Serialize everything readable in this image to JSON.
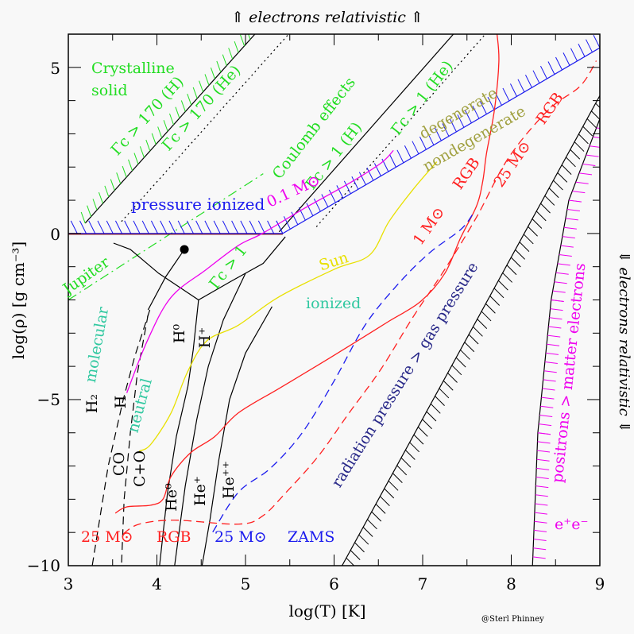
{
  "chart_data": {
    "type": "line",
    "title": "",
    "top_label": "⇑ electrons relativistic ⇑",
    "right_label": "⇓ electrons relativistic ⇓",
    "xlabel": "log(T)  [K]",
    "ylabel": "log(ρ)  [g cm⁻³]",
    "xlim": [
      3,
      9
    ],
    "ylim": [
      -10,
      6
    ],
    "xticks": [
      "3",
      "4",
      "5",
      "6",
      "7",
      "8",
      "9"
    ],
    "yticks": [
      "5",
      "0",
      "−5",
      "−10"
    ],
    "grid": false,
    "credit": "@Sterl Phinney",
    "colors": {
      "green": "#22dd22",
      "blue": "#1a1aee",
      "magenta": "#ee00ee",
      "red": "#ff2020",
      "yellow": "#e8e000",
      "teal": "#30c8a0",
      "olive": "#a0a040",
      "navy": "#282888",
      "black": "#000000"
    },
    "boundaries": [
      {
        "id": "gamma170H",
        "style": "solid",
        "color": "#000000",
        "hatch": "#22dd22",
        "points": [
          [
            3.19,
            0.31
          ],
          [
            5.12,
            6.04
          ]
        ]
      },
      {
        "id": "gamma170He",
        "style": "dotted",
        "color": "#000000",
        "points": [
          [
            3.6,
            0.36
          ],
          [
            5.5,
            6.04
          ]
        ]
      },
      {
        "id": "gamma1H",
        "style": "solid",
        "color": "#000000",
        "points": [
          [
            5.38,
            0.05
          ],
          [
            7.36,
            6.04
          ]
        ]
      },
      {
        "id": "gamma1He",
        "style": "dotted",
        "color": "#000000",
        "points": [
          [
            5.8,
            0.2
          ],
          [
            7.72,
            6.04
          ]
        ]
      },
      {
        "id": "jupiter",
        "style": "dashdot",
        "color": "#22dd22",
        "points": [
          [
            3.0,
            -2.0
          ],
          [
            5.2,
            1.8
          ]
        ]
      },
      {
        "id": "pressure-ionized",
        "style": "solid",
        "color": "#1a1aee",
        "hatch": "#1a1aee",
        "points": [
          [
            3.0,
            0.0
          ],
          [
            5.42,
            0.0
          ],
          [
            9.0,
            5.59
          ]
        ]
      },
      {
        "id": "radiation-pressure",
        "style": "solid",
        "color": "#000000",
        "hatch": "#000000",
        "points": [
          [
            6.09,
            -10
          ],
          [
            9.0,
            4.15
          ]
        ]
      },
      {
        "id": "pair-production",
        "style": "solid",
        "color": "#000000",
        "hatch": "#ee00ee",
        "points": [
          [
            8.24,
            -10
          ],
          [
            8.3,
            -6
          ],
          [
            8.45,
            -2
          ],
          [
            8.65,
            1
          ],
          [
            9.0,
            3.45
          ]
        ]
      },
      {
        "id": "critical-left",
        "style": "solid",
        "color": "#000000",
        "points": [
          [
            3.51,
            -0.29
          ],
          [
            3.7,
            -0.48
          ],
          [
            4.02,
            -1.2
          ],
          [
            4.29,
            -1.68
          ],
          [
            4.47,
            -2.0
          ],
          [
            4.83,
            -1.45
          ],
          [
            5.2,
            -0.9
          ],
          [
            5.45,
            -0.1
          ]
        ]
      },
      {
        "id": "critical-dot-left",
        "style": "solid",
        "color": "#000000",
        "points": [
          [
            4.31,
            -0.48
          ],
          [
            4.1,
            -1.3
          ],
          [
            3.9,
            -2.3
          ]
        ]
      },
      {
        "id": "H-ionization",
        "style": "solid",
        "color": "#000000",
        "points": [
          [
            4.47,
            -2.0
          ],
          [
            4.41,
            -3.5
          ],
          [
            4.35,
            -4.6
          ],
          [
            4.22,
            -6.1
          ],
          [
            4.12,
            -7.8
          ],
          [
            4.03,
            -10
          ]
        ]
      },
      {
        "id": "He0-He+",
        "style": "solid",
        "color": "#000000",
        "points": [
          [
            5.0,
            -1.2
          ],
          [
            4.75,
            -2.6
          ],
          [
            4.58,
            -4.0
          ],
          [
            4.45,
            -5.6
          ],
          [
            4.32,
            -7.6
          ],
          [
            4.2,
            -10
          ]
        ]
      },
      {
        "id": "He+-He++",
        "style": "solid",
        "color": "#000000",
        "points": [
          [
            5.3,
            -2.2
          ],
          [
            5.0,
            -3.6
          ],
          [
            4.82,
            -5.0
          ],
          [
            4.7,
            -6.8
          ],
          [
            4.6,
            -8.6
          ],
          [
            4.51,
            -10
          ]
        ]
      },
      {
        "id": "H2-H",
        "style": "dashed",
        "color": "#000000",
        "points": [
          [
            3.92,
            -2.3
          ],
          [
            3.75,
            -3.7
          ],
          [
            3.62,
            -5.0
          ],
          [
            3.45,
            -7.0
          ],
          [
            3.27,
            -10
          ]
        ]
      },
      {
        "id": "CO-C+O",
        "style": "dashed",
        "color": "#000000",
        "points": [
          [
            3.9,
            -2.45
          ],
          [
            3.78,
            -4.2
          ],
          [
            3.7,
            -6.0
          ],
          [
            3.63,
            -8.0
          ],
          [
            3.6,
            -10
          ]
        ]
      }
    ],
    "series": [
      {
        "name": "0.1 M⊙",
        "color": "#ee00ee",
        "style": "solid",
        "points": [
          [
            3.66,
            -4.8
          ],
          [
            3.89,
            -3.24
          ],
          [
            4.16,
            -1.92
          ],
          [
            4.56,
            -1.08
          ],
          [
            4.92,
            -0.36
          ],
          [
            5.19,
            0
          ],
          [
            5.64,
            0.72
          ],
          [
            6.17,
            1.51
          ],
          [
            6.53,
            2.12
          ],
          [
            6.67,
            2.5
          ]
        ]
      },
      {
        "name": "Sun",
        "color": "#e8e000",
        "style": "solid",
        "points": [
          [
            3.8,
            -6.55
          ],
          [
            3.93,
            -6.35
          ],
          [
            4.16,
            -5.4
          ],
          [
            4.34,
            -4.2
          ],
          [
            4.56,
            -3.24
          ],
          [
            4.92,
            -2.76
          ],
          [
            5.37,
            -1.92
          ],
          [
            6.0,
            -1.08
          ],
          [
            6.4,
            -0.65
          ],
          [
            6.62,
            0.36
          ],
          [
            6.89,
            1.32
          ],
          [
            7.16,
            2.16
          ]
        ]
      },
      {
        "name": "1 M⊙ RGB",
        "color": "#ff2020",
        "style": "solid",
        "points": [
          [
            3.53,
            -8.42
          ],
          [
            3.66,
            -8.23
          ],
          [
            3.93,
            -8.18
          ],
          [
            4.07,
            -7.99
          ],
          [
            4.16,
            -7.31
          ],
          [
            4.38,
            -6.6
          ],
          [
            4.65,
            -6.12
          ],
          [
            4.92,
            -5.4
          ],
          [
            5.37,
            -4.68
          ],
          [
            5.82,
            -3.96
          ],
          [
            6.26,
            -3.24
          ],
          [
            6.62,
            -2.64
          ],
          [
            6.98,
            -2.04
          ],
          [
            7.25,
            -1.2
          ],
          [
            7.43,
            -0.12
          ],
          [
            7.61,
            0.84
          ],
          [
            7.68,
            1.6
          ],
          [
            7.72,
            2.4
          ],
          [
            7.81,
            3.72
          ],
          [
            7.86,
            5.16
          ],
          [
            7.84,
            6.0
          ]
        ]
      },
      {
        "name": "25 M⊙ RGB",
        "color": "#ff2020",
        "style": "dashed",
        "points": [
          [
            3.62,
            -9.04
          ],
          [
            3.8,
            -8.75
          ],
          [
            4.2,
            -8.63
          ],
          [
            4.92,
            -8.75
          ],
          [
            5.19,
            -8.51
          ],
          [
            5.46,
            -7.79
          ],
          [
            5.82,
            -6.71
          ],
          [
            6.17,
            -5.4
          ],
          [
            6.53,
            -4.08
          ],
          [
            6.89,
            -2.52
          ],
          [
            7.25,
            -1.08
          ],
          [
            7.61,
            0.5
          ],
          [
            7.97,
            2.28
          ],
          [
            8.42,
            3.72
          ],
          [
            8.78,
            4.44
          ],
          [
            8.96,
            5.2
          ]
        ]
      },
      {
        "name": "25 M⊙ ZAMS",
        "color": "#1a1aee",
        "style": "dashed",
        "points": [
          [
            4.63,
            -8.99
          ],
          [
            4.92,
            -7.79
          ],
          [
            5.28,
            -7.07
          ],
          [
            5.64,
            -6.0
          ],
          [
            6.0,
            -4.44
          ],
          [
            6.35,
            -2.76
          ],
          [
            6.71,
            -1.56
          ],
          [
            7.07,
            -0.6
          ],
          [
            7.43,
            0.12
          ],
          [
            7.57,
            0.6
          ]
        ]
      }
    ],
    "points": [
      {
        "name": "",
        "x": 4.31,
        "y": -0.48
      }
    ],
    "annotations": {
      "crystalline": "Crystalline",
      "solid": "solid",
      "g170H": "Γc > 170 (H)",
      "g170He": "Γc > 170 (He)",
      "coulomb": "Coulomb effects",
      "g1H": "Γc > 1 (H)",
      "g1He": "Γc > 1 (He)",
      "g1": "Γc > 1",
      "pressure_ionized": "pressure ionized",
      "m01": "0.1 M⊙",
      "degenerate": "degenerate",
      "nondegenerate": "nondegenerate",
      "rgb25_top": "RGB",
      "m25_top": "25 M⊙",
      "m1": "1 M⊙",
      "rgb1": "RGB",
      "jupiter": "Jupiter",
      "sun": "Sun",
      "ionized": "ionized",
      "molecular": "molecular",
      "neutral": "neutral",
      "H2": "H₂",
      "H": "H",
      "CO": "CO",
      "CpO": "C+O",
      "H0": "H⁰",
      "Hp": "H⁺",
      "He0": "He⁰",
      "Hep": "He⁺",
      "Hepp": "He⁺⁺",
      "radiation": "radiation pressure > gas pressure",
      "positrons": "positrons > matter electrons",
      "ee": "e⁺e⁻",
      "m25_rgb": "25 M⊙",
      "rgb_bottom": "RGB",
      "m25_zams": "25 M⊙",
      "zams": "ZAMS"
    }
  }
}
